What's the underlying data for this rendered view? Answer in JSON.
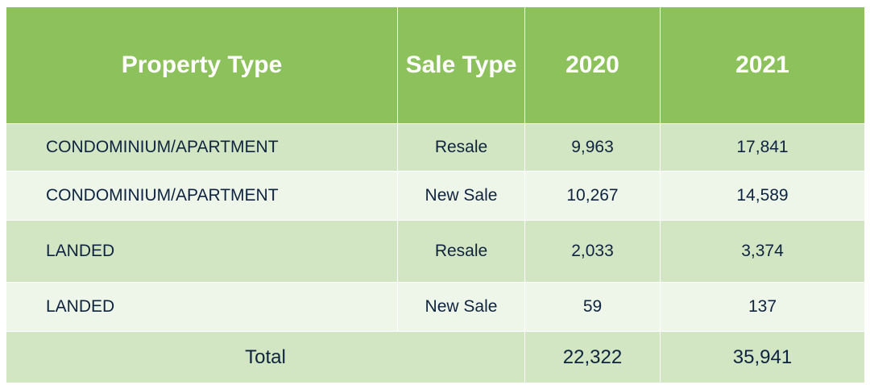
{
  "table": {
    "header": [
      "Property Type",
      "Sale Type",
      "2020",
      "2021"
    ],
    "rows": [
      [
        "CONDOMINIUM/APARTMENT",
        "Resale",
        "9,963",
        "17,841"
      ],
      [
        "CONDOMINIUM/APARTMENT",
        "New Sale",
        "10,267",
        "14,589"
      ],
      [
        "LANDED",
        "Resale",
        "2,033",
        "3,374"
      ],
      [
        "LANDED",
        "New Sale",
        "59",
        "137"
      ]
    ],
    "total": {
      "label": "Total",
      "values": [
        "22,322",
        "35,941"
      ]
    }
  }
}
